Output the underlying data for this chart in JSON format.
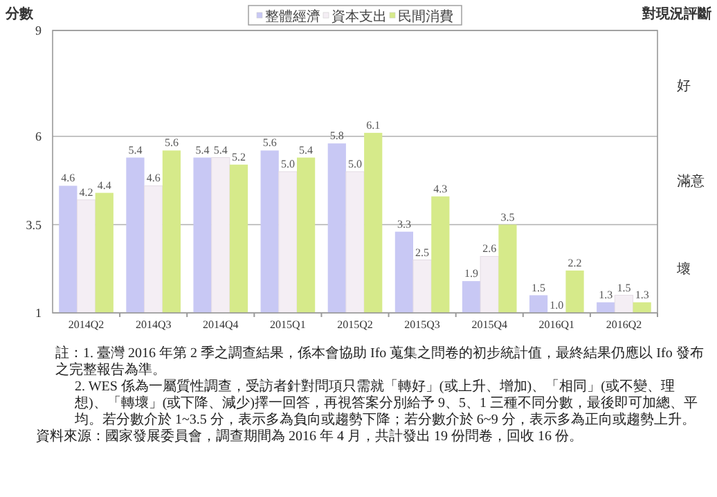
{
  "chart_data": {
    "type": "bar",
    "ylabel": "分數",
    "y2label": "對現況評斷",
    "categories": [
      "2014Q2",
      "2014Q3",
      "2014Q4",
      "2015Q1",
      "2015Q2",
      "2015Q3",
      "2015Q4",
      "2016Q1",
      "2016Q2"
    ],
    "series": [
      {
        "name": "整體經濟",
        "color": "#c8c8f4",
        "values": [
          4.6,
          5.4,
          5.4,
          5.6,
          5.8,
          3.3,
          1.9,
          1.5,
          1.3
        ],
        "value_labels": [
          "4.6",
          "5.4",
          "5.4",
          "5.6",
          "5.8",
          "3.3",
          "1.9",
          "1.5",
          "1.3"
        ]
      },
      {
        "name": "資本支出",
        "color": "#f4eef4",
        "values": [
          4.2,
          4.6,
          5.4,
          5.0,
          5.0,
          2.5,
          2.6,
          1.0,
          1.5
        ],
        "value_labels": [
          "4.2",
          "4.6",
          "5.4",
          "5.0",
          "5.0",
          "2.5",
          "2.6",
          "1.0",
          "1.5"
        ]
      },
      {
        "name": "民間消費",
        "color": "#d6ea8a",
        "values": [
          4.4,
          5.6,
          5.2,
          5.4,
          6.1,
          4.3,
          3.5,
          2.2,
          1.3
        ],
        "value_labels": [
          "4.4",
          "5.6",
          "5.2",
          "5.4",
          "6.1",
          "4.3",
          "3.5",
          "2.2",
          "1.3"
        ]
      }
    ],
    "ylim": [
      1,
      9
    ],
    "yticks": [
      1,
      3.5,
      6,
      9
    ],
    "grid": "y",
    "legend": "top",
    "annotations": [
      "好",
      "滿意",
      "壞",
      "註：1. 臺灣 2016 年第 2 季之調查結果，係本會協助 Ifo 蒐集之問卷的初步統計值，最終結果仍應以 Ifo 發布之完整報告為準。",
      "2. WES 係為一屬質性調查，受訪者針對問項只需就「轉好」(或上升、增加)、「相同」(或不變、理想)、「轉壞」(或下降、減少)擇一回答，再視答案分別給予 9、5、1 三種不同分數，最後即可加總、平均。若分數介於 1~3.5 分，表示多為負向或趨勢下降；若分數介於 6~9 分，表示多為正向或趨勢上升。",
      "資料來源：國家發展委員會，調查期間為 2016 年 4 月，共計發出 19 份問卷，回收 16 份。"
    ]
  }
}
